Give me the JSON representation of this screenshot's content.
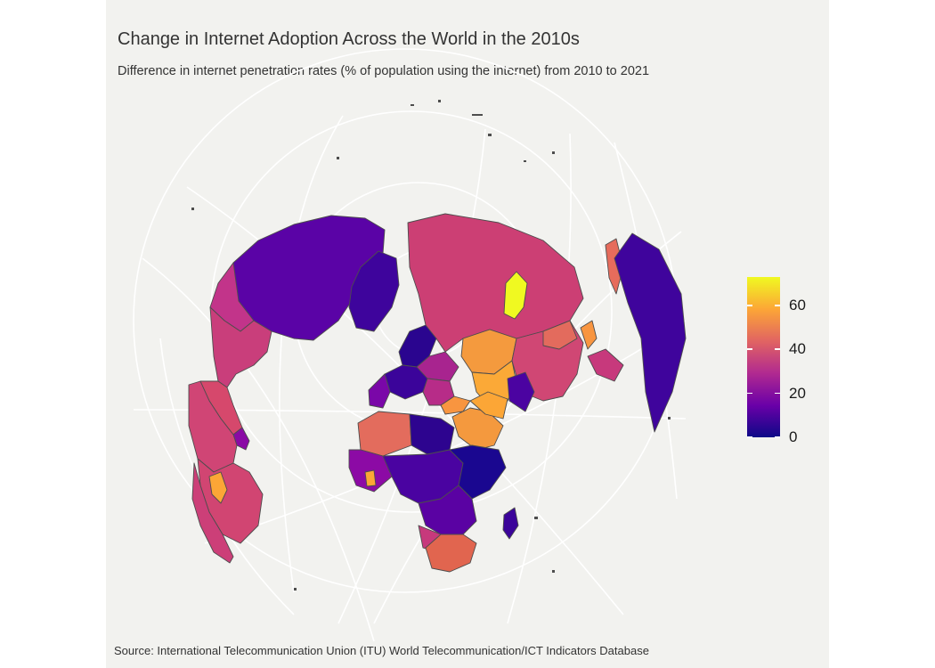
{
  "title": "Change in Internet Adoption Across the World in the 2010s",
  "subtitle": "Difference in internet penetration rates (% of population using the internet) from 2010 to 2021",
  "caption": "Source: International Telecommunication Union (ITU) World Telecommunication/ICT Indicators Database",
  "legend": {
    "min": 0,
    "max": 73,
    "ticks": [
      {
        "label": "0",
        "value": 0
      },
      {
        "label": "20",
        "value": 20
      },
      {
        "label": "40",
        "value": 40
      },
      {
        "label": "60",
        "value": 60
      }
    ],
    "colors": [
      "#0d0887",
      "#6a00a8",
      "#b12a90",
      "#e16462",
      "#fca636",
      "#f0f921"
    ]
  },
  "background": "#f2f2ef",
  "graticule_color": "#ffffff",
  "border_color": "#4d4d4d"
}
